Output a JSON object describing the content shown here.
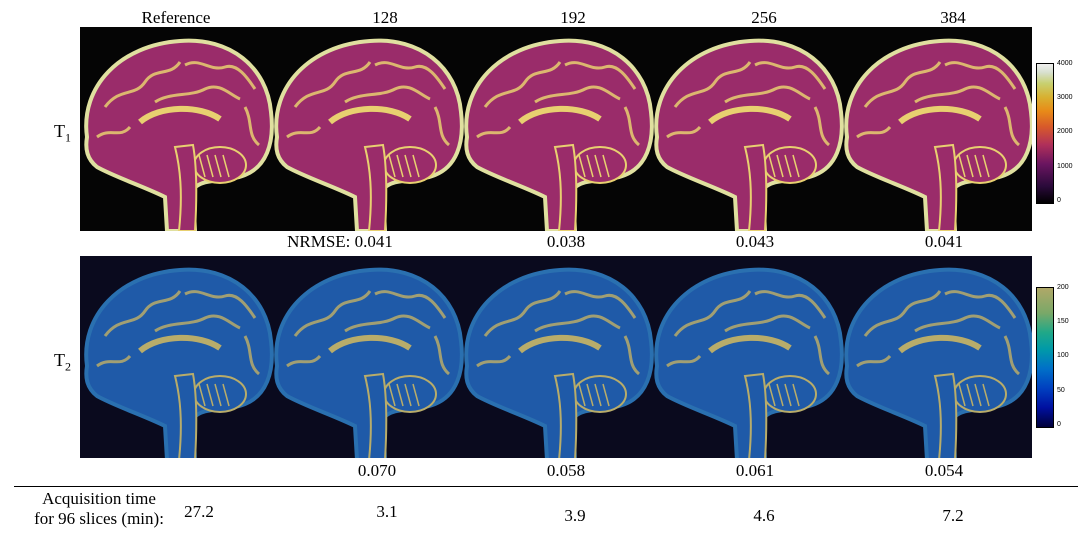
{
  "columns": [
    "Reference",
    "128",
    "192",
    "256",
    "384"
  ],
  "rows": {
    "t1_label": "T",
    "t1_sub": "1",
    "t2_label": "T",
    "t2_sub": "2"
  },
  "nrmse_t1": [
    "NRMSE: 0.041",
    "0.038",
    "0.043",
    "0.041"
  ],
  "nrmse_t2": [
    "0.070",
    "0.058",
    "0.061",
    "0.054"
  ],
  "colorbar_t1": {
    "ticks": [
      "4000",
      "3000",
      "2000",
      "1000",
      "0"
    ],
    "colors": [
      "#000000",
      "#6a1560",
      "#d85a2a",
      "#d8b030",
      "#f0f0f0"
    ]
  },
  "colorbar_t2": {
    "ticks": [
      "200",
      "150",
      "100",
      "50",
      "0"
    ],
    "colors": [
      "#00003a",
      "#0040c0",
      "#009aa8",
      "#7aa868",
      "#b0a868"
    ]
  },
  "acquisition": {
    "label_line1": "Acquisition time",
    "label_line2": "for 96 slices (min):",
    "values": [
      "27.2",
      "3.1",
      "3.9",
      "4.6",
      "7.2"
    ]
  },
  "palette": {
    "t1_tissue": "#9a2c6a",
    "t1_bright": "#e8d070",
    "t1_edge": "#e0e0a0",
    "t2_tissue": "#1f5aa8",
    "t2_bright": "#b8ac6a",
    "t2_edge": "#2a70b0"
  }
}
